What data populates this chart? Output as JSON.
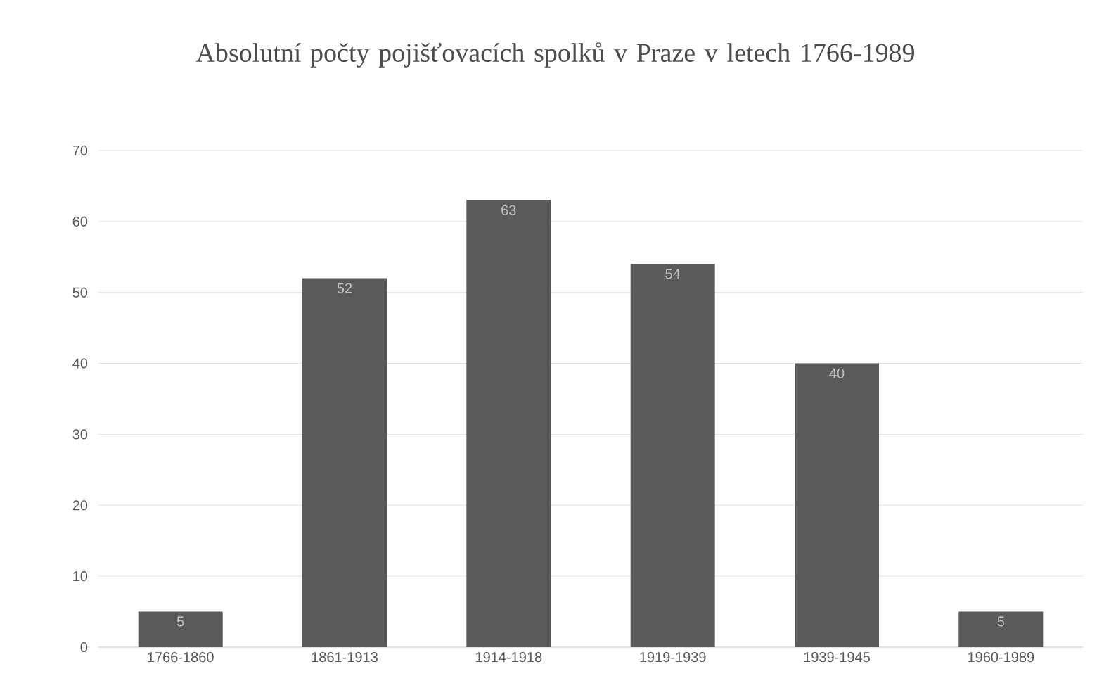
{
  "chart_data": {
    "type": "bar",
    "title": "Absolutní počty pojišťovacích spolků v Praze v letech 1766-1989",
    "categories": [
      "1766-1860",
      "1861-1913",
      "1914-1918",
      "1919-1939",
      "1939-1945",
      "1960-1989"
    ],
    "values": [
      5,
      52,
      63,
      54,
      40,
      5
    ],
    "color": "#5a5a5a",
    "ylim": [
      0,
      70
    ],
    "yticks": [
      0,
      10,
      20,
      30,
      40,
      50,
      60,
      70
    ],
    "grid": "y",
    "data_labels": true
  }
}
